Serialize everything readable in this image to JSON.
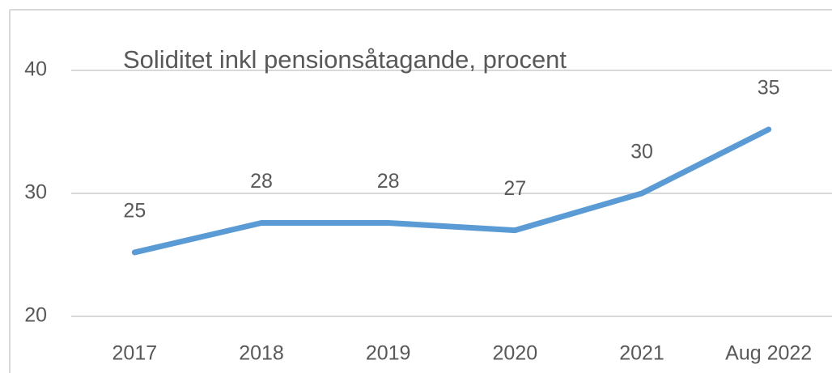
{
  "chart_data": {
    "type": "line",
    "title": "Soliditet inkl pensionsåtagande, procent",
    "categories": [
      "2017",
      "2018",
      "2019",
      "2020",
      "2021",
      "Aug 2022"
    ],
    "series": [
      {
        "name": "Soliditet",
        "color": "#5b9bd5",
        "values": [
          25.2,
          27.6,
          27.6,
          27.0,
          30.0,
          35.2
        ],
        "value_labels": [
          "25",
          "28",
          "28",
          "27",
          "30",
          "35"
        ]
      }
    ],
    "ylim": [
      20,
      40
    ],
    "yticks": [
      20,
      30,
      40
    ],
    "grid": true
  }
}
